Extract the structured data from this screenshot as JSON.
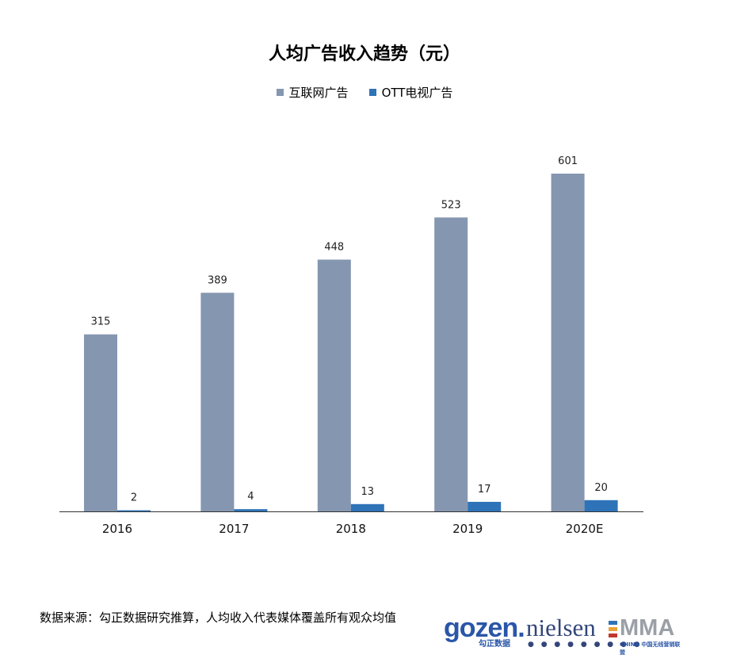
{
  "chart_data": {
    "type": "bar",
    "title": "人均广告收入趋势（元）",
    "categories": [
      "2016",
      "2017",
      "2018",
      "2019",
      "2020E"
    ],
    "series": [
      {
        "name": "互联网广告",
        "color": "#8596b0",
        "values": [
          315,
          389,
          448,
          523,
          601
        ]
      },
      {
        "name": "OTT电视广告",
        "color": "#2e73b8",
        "values": [
          2,
          4,
          13,
          17,
          20
        ]
      }
    ],
    "data_labels": true,
    "grid": false,
    "legend_position": "top-center",
    "ylim": [
      0,
      601
    ]
  },
  "footer": {
    "source": "数据来源：勾正数据研究推算，人均收入代表媒体覆盖所有观众均值"
  },
  "logos": {
    "gozen": "gozen.",
    "gozen_sub": "勾正数据",
    "nielsen": "nielsen",
    "mma": "MMA",
    "mma_sub": "CHINA 中国无线营销联盟"
  }
}
